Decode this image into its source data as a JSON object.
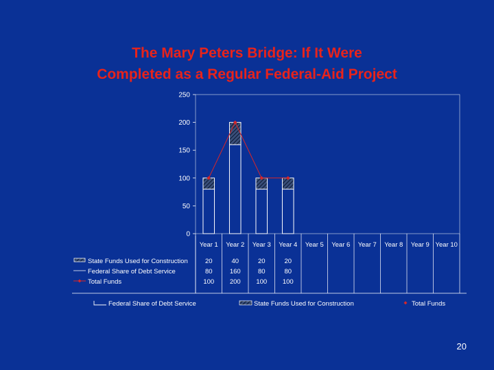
{
  "slide": {
    "title_line1": "The Mary Peters Bridge: If It Were",
    "title_line2": "Completed as a Regular Federal-Aid Project",
    "page_number": "20"
  },
  "colors": {
    "background": "#0a3196",
    "title": "#e8231b",
    "text": "#ffffff",
    "total_funds_line": "#d6262a",
    "state_funds_hatch": "#1e2f52"
  },
  "chart_data": {
    "type": "bar",
    "stacked": true,
    "categories": [
      "Year 1",
      "Year 2",
      "Year 3",
      "Year 4",
      "Year 5",
      "Year 6",
      "Year 7",
      "Year 8",
      "Year 9",
      "Year 10"
    ],
    "series": [
      {
        "name": "State Funds Used for Construction",
        "kind": "bar",
        "values": [
          20,
          40,
          20,
          20,
          null,
          null,
          null,
          null,
          null,
          null
        ]
      },
      {
        "name": "Federal Share of Debt Service",
        "kind": "bar",
        "values": [
          80,
          160,
          80,
          80,
          null,
          null,
          null,
          null,
          null,
          null
        ]
      },
      {
        "name": "Total Funds",
        "kind": "line",
        "values": [
          100,
          200,
          100,
          100,
          null,
          null,
          null,
          null,
          null,
          null
        ]
      }
    ],
    "table_rows": [
      {
        "label": "State Funds Used for Construction",
        "cells": [
          "20",
          "40",
          "20",
          "20",
          "",
          "",
          "",
          "",
          "",
          ""
        ]
      },
      {
        "label": "Federal Share of Debt Service",
        "cells": [
          "80",
          "160",
          "80",
          "80",
          "",
          "",
          "",
          "",
          "",
          ""
        ]
      },
      {
        "label": "Total Funds",
        "cells": [
          "100",
          "200",
          "100",
          "100",
          "",
          "",
          "",
          "",
          "",
          ""
        ]
      }
    ],
    "yticks": [
      "0",
      "50",
      "100",
      "150",
      "200",
      "250"
    ],
    "ylim": [
      0,
      250
    ],
    "legend": {
      "placement": "bottom",
      "items": [
        "Federal Share of Debt Service",
        "State Funds Used for Construction",
        "Total Funds"
      ]
    },
    "grid": false,
    "title": "",
    "xlabel": "",
    "ylabel": ""
  }
}
